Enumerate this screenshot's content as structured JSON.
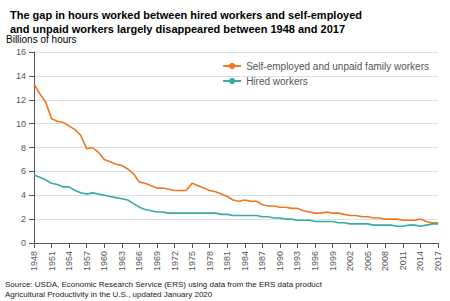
{
  "chart_data": {
    "type": "line",
    "title": "The gap in hours worked between hired workers and self-employed\nand unpaid workers largely disappeared between 1948 and 2017",
    "ylabel": "Billions of hours",
    "source": "Source: USDA, Economic Research Service (ERS) using data from the ERS data product\nAgricultural Productivity in the U.S., updated January 2020",
    "x": [
      1948,
      1949,
      1950,
      1951,
      1952,
      1953,
      1954,
      1955,
      1956,
      1957,
      1958,
      1959,
      1960,
      1961,
      1962,
      1963,
      1964,
      1965,
      1966,
      1967,
      1968,
      1969,
      1970,
      1971,
      1972,
      1973,
      1974,
      1975,
      1976,
      1977,
      1978,
      1979,
      1980,
      1981,
      1982,
      1983,
      1984,
      1985,
      1986,
      1987,
      1988,
      1989,
      1990,
      1991,
      1992,
      1993,
      1994,
      1995,
      1996,
      1997,
      1998,
      1999,
      2000,
      2001,
      2002,
      2003,
      2004,
      2005,
      2006,
      2007,
      2008,
      2009,
      2010,
      2011,
      2012,
      2013,
      2014,
      2015,
      2016,
      2017
    ],
    "series": [
      {
        "name": "Self-employed and unpaid family workers",
        "color": "#F07820",
        "values": [
          13.3,
          12.5,
          11.8,
          10.4,
          10.2,
          10.1,
          9.8,
          9.5,
          9.0,
          7.9,
          8.0,
          7.6,
          7.0,
          6.8,
          6.6,
          6.5,
          6.2,
          5.8,
          5.1,
          5.0,
          4.8,
          4.6,
          4.6,
          4.5,
          4.4,
          4.4,
          4.4,
          5.0,
          4.8,
          4.6,
          4.4,
          4.3,
          4.1,
          3.9,
          3.6,
          3.5,
          3.6,
          3.5,
          3.5,
          3.2,
          3.1,
          3.1,
          3.0,
          3.0,
          2.9,
          2.9,
          2.7,
          2.6,
          2.5,
          2.5,
          2.6,
          2.5,
          2.5,
          2.4,
          2.3,
          2.3,
          2.2,
          2.2,
          2.1,
          2.1,
          2.0,
          2.0,
          2.0,
          1.9,
          1.9,
          1.9,
          2.0,
          1.8,
          1.7,
          1.7
        ]
      },
      {
        "name": "Hired workers",
        "color": "#3AABA0",
        "values": [
          5.7,
          5.5,
          5.3,
          5.0,
          4.9,
          4.7,
          4.7,
          4.4,
          4.2,
          4.1,
          4.2,
          4.1,
          4.0,
          3.9,
          3.8,
          3.7,
          3.6,
          3.3,
          3.0,
          2.8,
          2.7,
          2.6,
          2.6,
          2.5,
          2.5,
          2.5,
          2.5,
          2.5,
          2.5,
          2.5,
          2.5,
          2.5,
          2.4,
          2.4,
          2.3,
          2.3,
          2.3,
          2.3,
          2.3,
          2.2,
          2.2,
          2.1,
          2.1,
          2.0,
          2.0,
          1.9,
          1.9,
          1.9,
          1.8,
          1.8,
          1.8,
          1.8,
          1.7,
          1.7,
          1.6,
          1.6,
          1.6,
          1.6,
          1.5,
          1.5,
          1.5,
          1.5,
          1.4,
          1.4,
          1.5,
          1.5,
          1.4,
          1.5,
          1.6,
          1.6
        ]
      }
    ],
    "xlim": [
      1948,
      2017
    ],
    "xticks": [
      1948,
      1951,
      1954,
      1957,
      1960,
      1963,
      1966,
      1969,
      1972,
      1975,
      1978,
      1981,
      1984,
      1987,
      1990,
      1993,
      1996,
      1999,
      2002,
      2005,
      2008,
      2011,
      2014,
      2017
    ],
    "ylim": [
      0,
      16
    ],
    "yticks": [
      0,
      2,
      4,
      6,
      8,
      10,
      12,
      14,
      16
    ],
    "grid": true,
    "legend": "upper right"
  }
}
